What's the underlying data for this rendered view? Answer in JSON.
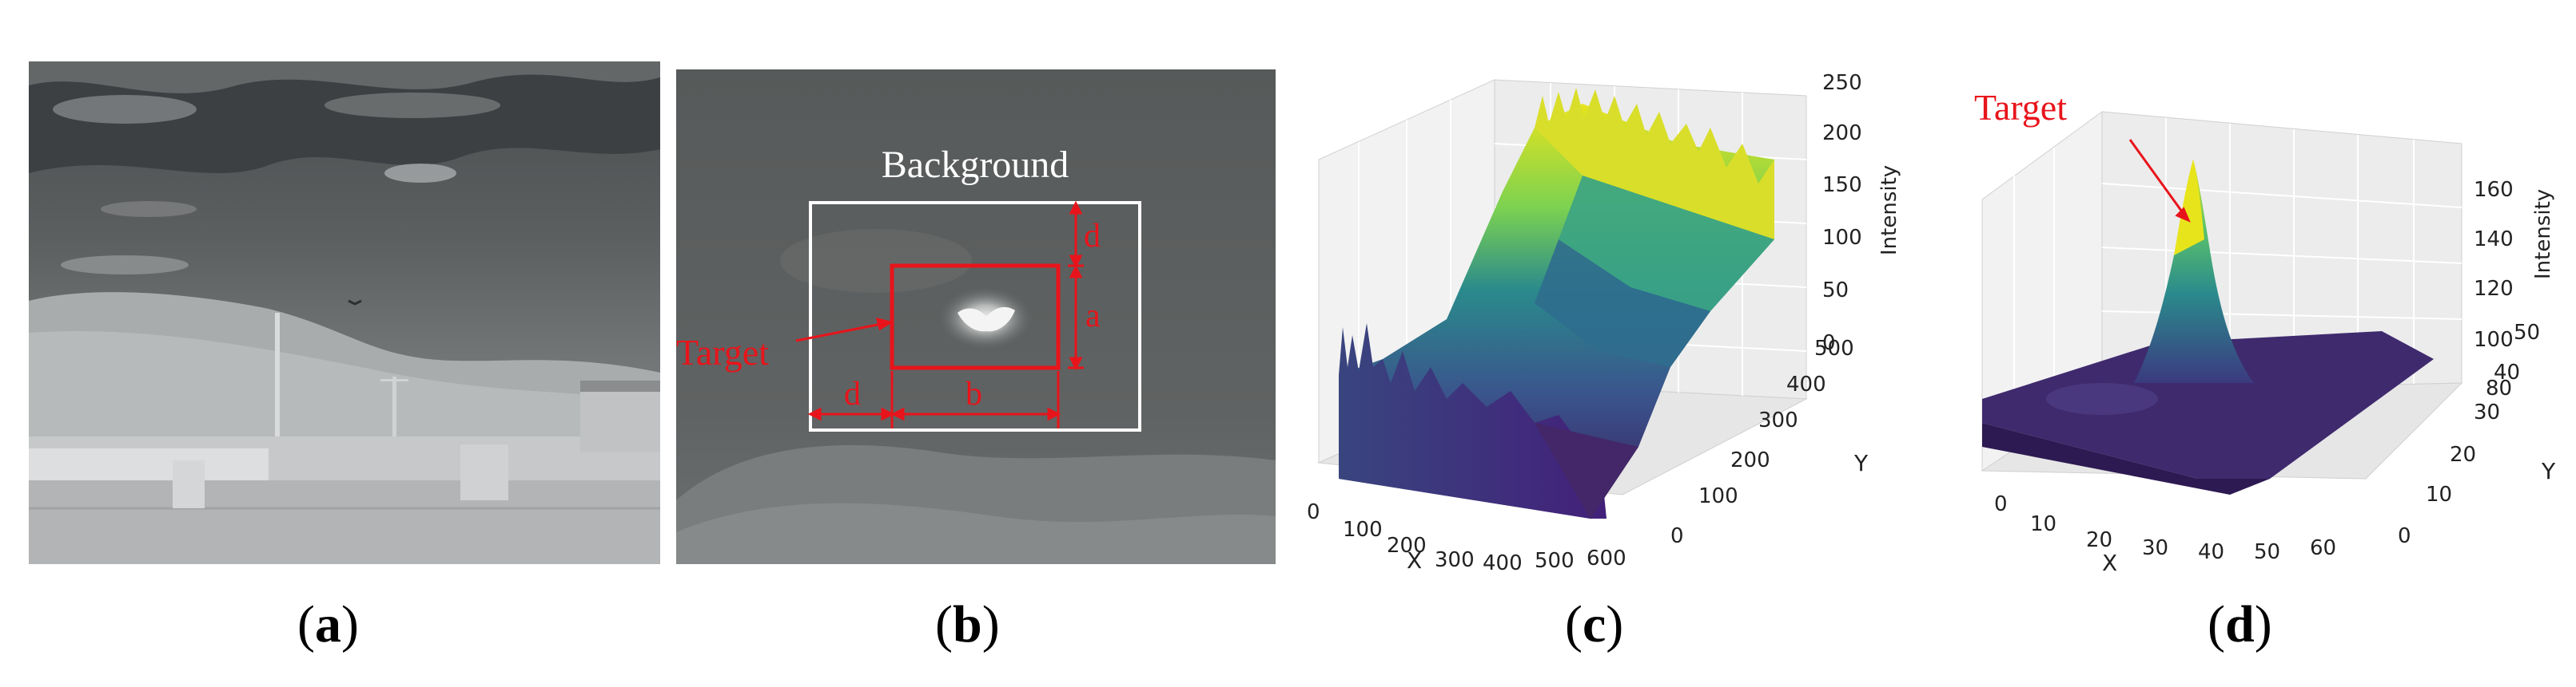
{
  "panels": {
    "a": {
      "caption_letter": "a"
    },
    "b": {
      "caption_letter": "b",
      "background_label": "Background",
      "target_label": "Target",
      "dim_d_top": "d",
      "dim_a": "a",
      "dim_d_left": "d",
      "dim_b": "b"
    },
    "c": {
      "caption_letter": "c",
      "xlabel": "X",
      "ylabel": "Y",
      "zlabel": "Intensity",
      "x_ticks": [
        "0",
        "100",
        "200",
        "300",
        "400",
        "500",
        "600"
      ],
      "y_ticks": [
        "0",
        "100",
        "200",
        "300",
        "400",
        "500"
      ],
      "z_ticks": [
        "0",
        "50",
        "100",
        "150",
        "200",
        "250"
      ]
    },
    "d": {
      "caption_letter": "d",
      "target_label": "Target",
      "xlabel": "X",
      "ylabel": "Y",
      "zlabel": "Intensity",
      "x_ticks": [
        "0",
        "10",
        "20",
        "30",
        "40",
        "50",
        "60"
      ],
      "y_ticks": [
        "0",
        "10",
        "20",
        "30",
        "40",
        "50"
      ],
      "z_ticks": [
        "80",
        "100",
        "120",
        "140",
        "160"
      ]
    }
  },
  "colors": {
    "annotation_red": "#e8141b",
    "background_box": "#ffffff",
    "surface_low": "#3b1d5c",
    "surface_mid": "#2a8a8c",
    "surface_high": "#e8e41c"
  }
}
